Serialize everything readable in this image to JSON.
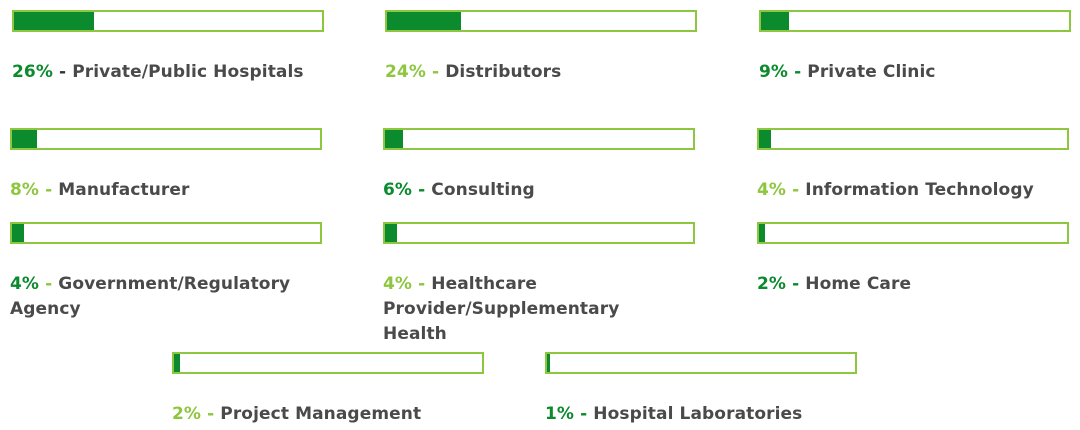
{
  "chart_data": {
    "type": "bar",
    "scale_max_percent": 100,
    "colors": {
      "fill": "#0b8a2e",
      "border": "#8dc63f",
      "label_text": "#4a4a4a",
      "percent_dark": "#0b8a2e",
      "percent_light": "#8dc63f"
    },
    "items": [
      {
        "percent_label": "26%",
        "value": 26,
        "separator": "-",
        "name": "Private/Public Hospitals",
        "percent_color": "#0b8a2e",
        "separator_color": "#333333"
      },
      {
        "percent_label": "24%",
        "value": 24,
        "separator": "-",
        "name": "Distributors",
        "percent_color": "#8dc63f",
        "separator_color": "#8dc63f"
      },
      {
        "percent_label": "9%",
        "value": 9,
        "separator": "-",
        "name": "Private Clinic",
        "percent_color": "#0b8a2e",
        "separator_color": "#0b8a2e"
      },
      {
        "percent_label": "8%",
        "value": 8,
        "separator": "-",
        "name": "Manufacturer",
        "percent_color": "#8dc63f",
        "separator_color": "#8dc63f"
      },
      {
        "percent_label": "6%",
        "value": 6,
        "separator": "-",
        "name": "Consulting",
        "percent_color": "#0b8a2e",
        "separator_color": "#0b8a2e"
      },
      {
        "percent_label": "4%",
        "value": 4,
        "separator": "-",
        "name": "Information Technology",
        "percent_color": "#8dc63f",
        "separator_color": "#8dc63f"
      },
      {
        "percent_label": "4%",
        "value": 4,
        "separator": "-",
        "name": "Government/Regulatory Agency",
        "percent_color": "#0b8a2e",
        "separator_color": "#8dc63f"
      },
      {
        "percent_label": "4%",
        "value": 4,
        "separator": "-",
        "name": "Healthcare Provider/Supplementary Health",
        "percent_color": "#8dc63f",
        "separator_color": "#8dc63f"
      },
      {
        "percent_label": "2%",
        "value": 2,
        "separator": "-",
        "name": "Home Care",
        "percent_color": "#0b8a2e",
        "separator_color": "#0b8a2e"
      },
      {
        "percent_label": "2%",
        "value": 2,
        "separator": "-",
        "name": "Project Management",
        "percent_color": "#8dc63f",
        "separator_color": "#8dc63f"
      },
      {
        "percent_label": "1%",
        "value": 1,
        "separator": "-",
        "name": "Hospital Laboratories",
        "percent_color": "#0b8a2e",
        "separator_color": "#0b8a2e"
      }
    ]
  }
}
